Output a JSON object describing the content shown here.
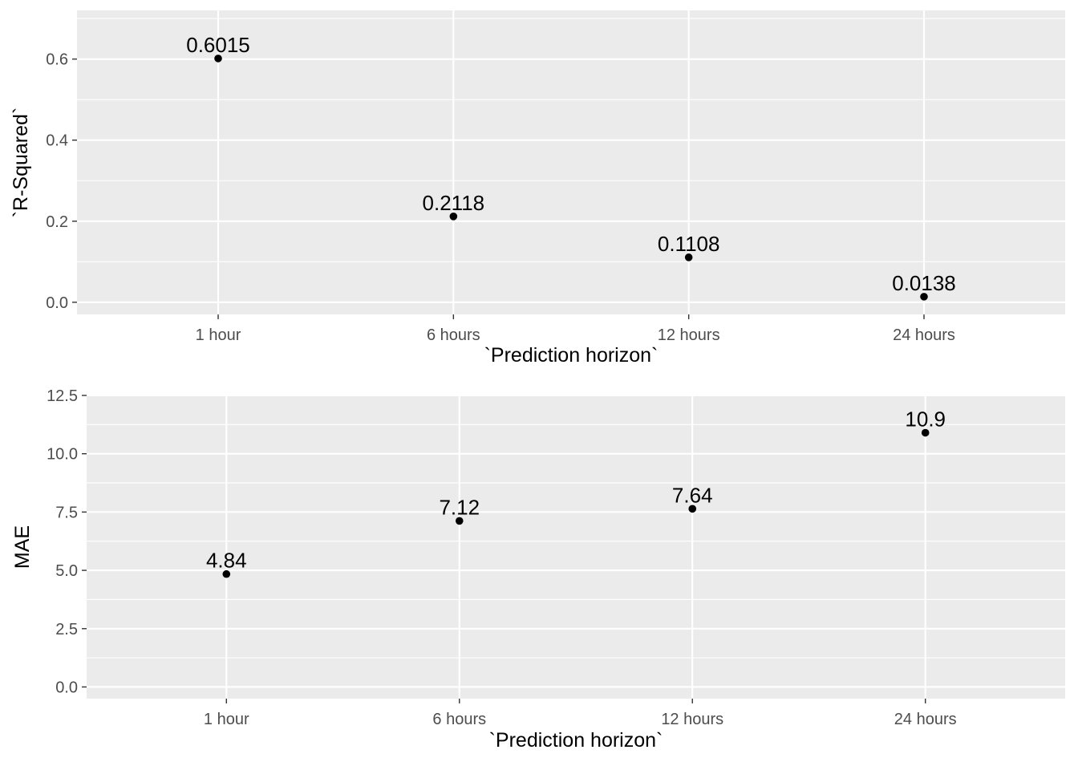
{
  "chart_data": [
    {
      "type": "scatter",
      "categories": [
        "1 hour",
        "6 hours",
        "12 hours",
        "24 hours"
      ],
      "values": [
        0.6015,
        0.2118,
        0.1108,
        0.0138
      ],
      "point_labels": [
        "0.6015",
        "0.2118",
        "0.1108",
        "0.0138"
      ],
      "xlabel": "`Prediction horizon`",
      "ylabel": "`R-Squared`",
      "ylim": [
        -0.03,
        0.72
      ],
      "yticks": [
        0.0,
        0.2,
        0.4,
        0.6
      ],
      "ytick_labels": [
        "0.0",
        "0.2",
        "0.4",
        "0.6"
      ],
      "grid": true
    },
    {
      "type": "scatter",
      "categories": [
        "1 hour",
        "6 hours",
        "12 hours",
        "24 hours"
      ],
      "values": [
        4.84,
        7.12,
        7.64,
        10.9
      ],
      "point_labels": [
        "4.84",
        "7.12",
        "7.64",
        "10.9"
      ],
      "xlabel": "`Prediction horizon`",
      "ylabel": "MAE",
      "ylim": [
        -0.5,
        12.5
      ],
      "yticks": [
        0.0,
        2.5,
        5.0,
        7.5,
        10.0,
        12.5
      ],
      "ytick_labels": [
        "0.0",
        "2.5",
        "5.0",
        "7.5",
        "10.0",
        "12.5"
      ],
      "grid": true
    }
  ]
}
